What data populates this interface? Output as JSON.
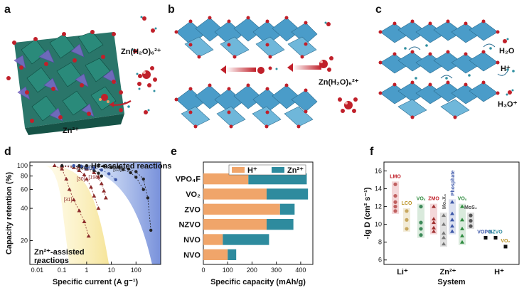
{
  "figure": {
    "panel_labels": [
      "a",
      "b",
      "c",
      "d",
      "e",
      "f"
    ],
    "panel_a": {
      "ion": "Zn(H₂O)₆²⁺",
      "zn": "Zn²⁺"
    },
    "panel_b": {
      "ion": "Zn(H₂O)₆²⁺"
    },
    "panel_c": {
      "h2o": "H₂O",
      "hplus": "H⁺",
      "h3o": "H₃O⁺"
    },
    "colors": {
      "octahedra_blue": "#4a9cc9",
      "octahedra_green": "#1f6f62",
      "tetra_purple": "#7b68c8",
      "oxygen_red": "#c0202a",
      "h_orange": "#e8a06a",
      "zn_teal": "#2f8fa0"
    }
  },
  "chart_data": [
    {
      "id": "d",
      "type": "scatter",
      "xlabel": "Specific current (A g⁻¹)",
      "ylabel": "Capacity retention (%)",
      "xscale": "log",
      "xlim": [
        0.005,
        1000
      ],
      "ylim": [
        12,
        108
      ],
      "xticks": [
        "0.01",
        "0.1",
        "1",
        "10",
        "100"
      ],
      "xtick_values": [
        0.01,
        0.1,
        1,
        10,
        100
      ],
      "yticks": [
        "100",
        "80",
        "60",
        "40",
        "20"
      ],
      "ytick_values": [
        100,
        80,
        60,
        40,
        20
      ],
      "annotations": {
        "hplus": "H⁺-assisted reactions",
        "zn": "Zn²⁺-assisted\nreactions",
        "zn_line1": "Zn²⁺-assisted",
        "zn_line2": "reactions"
      },
      "series": [
        {
          "name": "[31]",
          "color": "#8b2a2a",
          "marker": "triangle",
          "points": [
            [
              0.05,
              100
            ],
            [
              0.1,
              93
            ],
            [
              0.15,
              75
            ],
            [
              0.2,
              60
            ],
            [
              0.3,
              48
            ],
            [
              0.5,
              38
            ],
            [
              0.8,
              30
            ],
            [
              1.2,
              22
            ]
          ]
        },
        {
          "name": "[30]",
          "color": "#8b2a2a",
          "marker": "triangle",
          "points": [
            [
              0.1,
              99
            ],
            [
              0.3,
              96
            ],
            [
              0.5,
              90
            ],
            [
              0.8,
              82
            ],
            [
              1,
              75
            ],
            [
              1.5,
              63
            ],
            [
              2,
              52
            ],
            [
              3,
              40
            ]
          ]
        },
        {
          "name": "[198]",
          "color": "#8b2a2a",
          "marker": "triangle",
          "points": [
            [
              0.1,
              100
            ],
            [
              0.5,
              97
            ],
            [
              1,
              93
            ],
            [
              2,
              86
            ],
            [
              3,
              78
            ],
            [
              4,
              68
            ],
            [
              5,
              58
            ],
            [
              6,
              50
            ]
          ]
        },
        {
          "name": "[180]",
          "color": "#222222",
          "marker": "circle",
          "points": [
            [
              0.1,
              100
            ],
            [
              0.3,
              99
            ],
            [
              0.6,
              97
            ],
            [
              1,
              95
            ],
            [
              2,
              90
            ],
            [
              3,
              85
            ],
            [
              4,
              80
            ]
          ]
        },
        {
          "name": "[112]",
          "color": "#3a55a8",
          "marker": "circle",
          "points": [
            [
              0.3,
              100
            ],
            [
              0.6,
              99
            ],
            [
              1,
              97
            ],
            [
              2,
              95
            ],
            [
              4,
              91
            ],
            [
              8,
              84
            ],
            [
              15,
              74
            ]
          ]
        },
        {
          "name": "[63]",
          "color": "#222222",
          "marker": "circle",
          "points": [
            [
              0.5,
              100
            ],
            [
              1,
              99.5
            ],
            [
              3,
              99
            ],
            [
              10,
              96
            ],
            [
              30,
              92
            ],
            [
              60,
              86
            ],
            [
              100,
              78
            ],
            [
              200,
              60
            ]
          ]
        },
        {
          "name": "",
          "color": "#222222",
          "marker": "circle",
          "points": [
            [
              1,
              100
            ],
            [
              5,
              99
            ],
            [
              20,
              97
            ],
            [
              50,
              93
            ],
            [
              100,
              88
            ],
            [
              200,
              75
            ],
            [
              300,
              50
            ],
            [
              400,
              25
            ]
          ]
        }
      ]
    },
    {
      "id": "e",
      "type": "bar",
      "orientation": "horizontal",
      "xlabel": "Specific capacity (mAh/g)",
      "xlim": [
        0,
        450
      ],
      "xticks": [
        "0",
        "100",
        "200",
        "300",
        "400"
      ],
      "xtick_values": [
        0,
        100,
        200,
        300,
        400
      ],
      "categories": [
        "VPO₄F",
        "VO₂",
        "ZVO",
        "NZVO",
        "NVO",
        "NVO"
      ],
      "series": [
        {
          "name": "H⁺",
          "color": "#f0a56a",
          "values": [
            185,
            260,
            315,
            260,
            80,
            100
          ]
        },
        {
          "name": "Zn²⁺",
          "color": "#2e8b9e",
          "values": [
            240,
            170,
            60,
            110,
            190,
            35
          ]
        }
      ]
    },
    {
      "id": "f",
      "type": "scatter",
      "xlabel": "System",
      "ylabel": "-lg D (cm² s⁻¹)",
      "ylim": [
        5.5,
        17
      ],
      "yticks": [
        "16",
        "14",
        "12",
        "10",
        "8",
        "6"
      ],
      "ytick_values": [
        16,
        14,
        12,
        10,
        8,
        6
      ],
      "categories": [
        "Li⁺",
        "Zn²⁺",
        "H⁺"
      ],
      "groups": [
        {
          "name": "LMO",
          "label_color": "#c0202a",
          "points": [
            12.5,
            11.5,
            12.0,
            14.5,
            13.2
          ]
        },
        {
          "name": "LCO",
          "label_color": "#b89020",
          "points": [
            11.5,
            10.5,
            9.5
          ]
        },
        {
          "name": "VOₓ",
          "label_color": "#2e8b3e",
          "points": [
            12.0,
            10.2,
            9.5,
            8.8
          ]
        },
        {
          "name": "ZMO",
          "label_color": "#c0202a",
          "points": [
            12.0,
            10.6,
            10.2,
            9.6,
            9.2
          ]
        },
        {
          "name": "Mo₆X₈",
          "label_color": "#555555",
          "points": [
            11.0,
            10.0,
            9.0,
            8.5,
            7.8
          ]
        },
        {
          "name": "Phosphate",
          "label_color": "#3a55a8",
          "points": [
            12.5,
            11.2,
            10.5,
            9.8,
            9.2
          ]
        },
        {
          "name": "VOₓ",
          "label_color": "#2e8b3e",
          "points": [
            12.0,
            10.5,
            9.5,
            8.7,
            8.0
          ]
        },
        {
          "name": "MoS₂",
          "label_color": "#444444",
          "points": [
            11.0,
            10.4,
            9.8
          ]
        },
        {
          "name": "VOPO₄",
          "label_color": "#3a55a8",
          "points": [
            8.5
          ]
        },
        {
          "name": "NZVO",
          "label_color": "#2e8b9e",
          "points": [
            8.5
          ]
        },
        {
          "name": "VO₂",
          "label_color": "#b89020",
          "points": [
            7.5
          ]
        }
      ]
    }
  ]
}
